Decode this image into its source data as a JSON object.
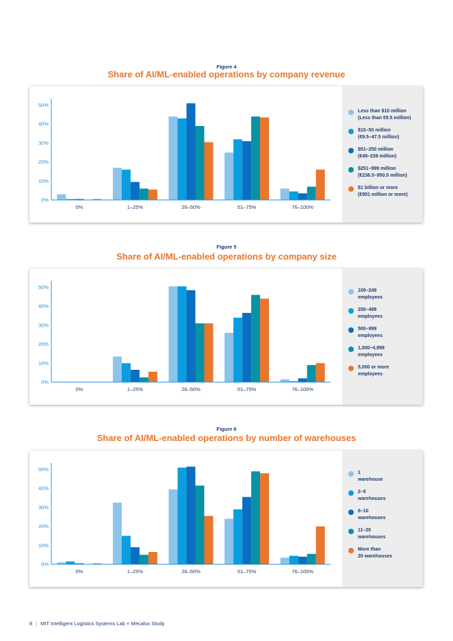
{
  "colors": [
    "#8cc4ea",
    "#0a9ee0",
    "#0a6fc0",
    "#0892a6",
    "#e8762c"
  ],
  "footer": {
    "page": "8",
    "text": "MIT Intelligent Logistics Systems Lab × Mecalux Study"
  },
  "figures": [
    {
      "label": "Figure 4",
      "title": "Share of AI/ML-enabled operations by company revenue",
      "legend": [
        "Less than $10 million\n(Less than €9.5 million)",
        "$10–50 million\n(€9.5–47.5 million)",
        "$51–250 million\n(€48–238 million)",
        "$251–999 million\n(€238.5–950.5 million)",
        "$1 billion or more\n(€951 million or more)"
      ]
    },
    {
      "label": "Figure 5",
      "title": "Share of AI/ML-enabled operations by company size",
      "legend": [
        "100–249\nemployees",
        "250–499\nemployees",
        "500–999\nemployees",
        "1,000–4,999\nemployees",
        "5,000 or more\nemployees"
      ]
    },
    {
      "label": "Figure 6",
      "title": "Share of AI/ML-enabled operations by number of warehouses",
      "legend": [
        "1\nwarehouse",
        "2–5\nwarehouses",
        "6–10\nwarehouses",
        "11–20\nwarehouses",
        "More than\n20 warehouses"
      ]
    }
  ],
  "chart_data": [
    {
      "type": "bar",
      "title": "Share of AI/ML-enabled operations by company revenue",
      "categories": [
        "0%",
        "1–25%",
        "26–50%",
        "51–75%",
        "76–100%"
      ],
      "yticks": [
        "0%",
        "10%",
        "20%",
        "30%",
        "40%",
        "50%"
      ],
      "ylim": [
        0,
        52
      ],
      "legend_position": "right",
      "series": [
        {
          "name": "Less than $10 million (Less than €9.5 million)",
          "values": [
            3,
            17,
            44,
            25,
            6
          ]
        },
        {
          "name": "$10–50 million (€9.5–47.5 million)",
          "values": [
            0.5,
            16,
            43,
            32,
            4.5
          ]
        },
        {
          "name": "$51–250 million (€48–238 million)",
          "values": [
            0.5,
            9.5,
            51,
            31,
            3.5
          ]
        },
        {
          "name": "$251–999 million (€238.5–950.5 million)",
          "values": [
            0,
            6,
            39,
            44,
            7
          ]
        },
        {
          "name": "$1 billion or more (€951 million or more)",
          "values": [
            0.5,
            5.5,
            30.5,
            43.5,
            16
          ]
        }
      ]
    },
    {
      "type": "bar",
      "title": "Share of AI/ML-enabled operations by company size",
      "categories": [
        "0%",
        "1–25%",
        "26–50%",
        "51–75%",
        "76–100%"
      ],
      "yticks": [
        "0%",
        "10%",
        "20%",
        "30%",
        "40%",
        "50%"
      ],
      "ylim": [
        0,
        52
      ],
      "legend_position": "right",
      "series": [
        {
          "name": "100–249 employees",
          "values": [
            0,
            13.5,
            50.5,
            26,
            1.5
          ]
        },
        {
          "name": "250–499 employees",
          "values": [
            0,
            10,
            50.5,
            34,
            0.5
          ]
        },
        {
          "name": "500–999 employees",
          "values": [
            0,
            6.5,
            48.5,
            36.5,
            2
          ]
        },
        {
          "name": "1,000–4,999 employees",
          "values": [
            0,
            2.5,
            31,
            46,
            9
          ]
        },
        {
          "name": "5,000 or more employees",
          "values": [
            0,
            5.5,
            31,
            44,
            10
          ]
        }
      ]
    },
    {
      "type": "bar",
      "title": "Share of AI/ML-enabled operations by number of warehouses",
      "categories": [
        "0%",
        "1–25%",
        "26–50%",
        "51–75%",
        "76–100%"
      ],
      "yticks": [
        "0%",
        "10%",
        "20%",
        "30%",
        "40%",
        "50%"
      ],
      "ylim": [
        0,
        52
      ],
      "legend_position": "right",
      "series": [
        {
          "name": "1 warehouse",
          "values": [
            1,
            32.5,
            39.5,
            24,
            3.5
          ]
        },
        {
          "name": "2–5 warehouses",
          "values": [
            1.5,
            15,
            51,
            29,
            4.5
          ]
        },
        {
          "name": "6–10 warehouses",
          "values": [
            0.5,
            9,
            51.5,
            35.5,
            4
          ]
        },
        {
          "name": "11–20 warehouses",
          "values": [
            0,
            5,
            41.5,
            49,
            5.5
          ]
        },
        {
          "name": "More than 20 warehouses",
          "values": [
            0.5,
            6.5,
            25.5,
            48,
            20
          ]
        }
      ]
    }
  ]
}
